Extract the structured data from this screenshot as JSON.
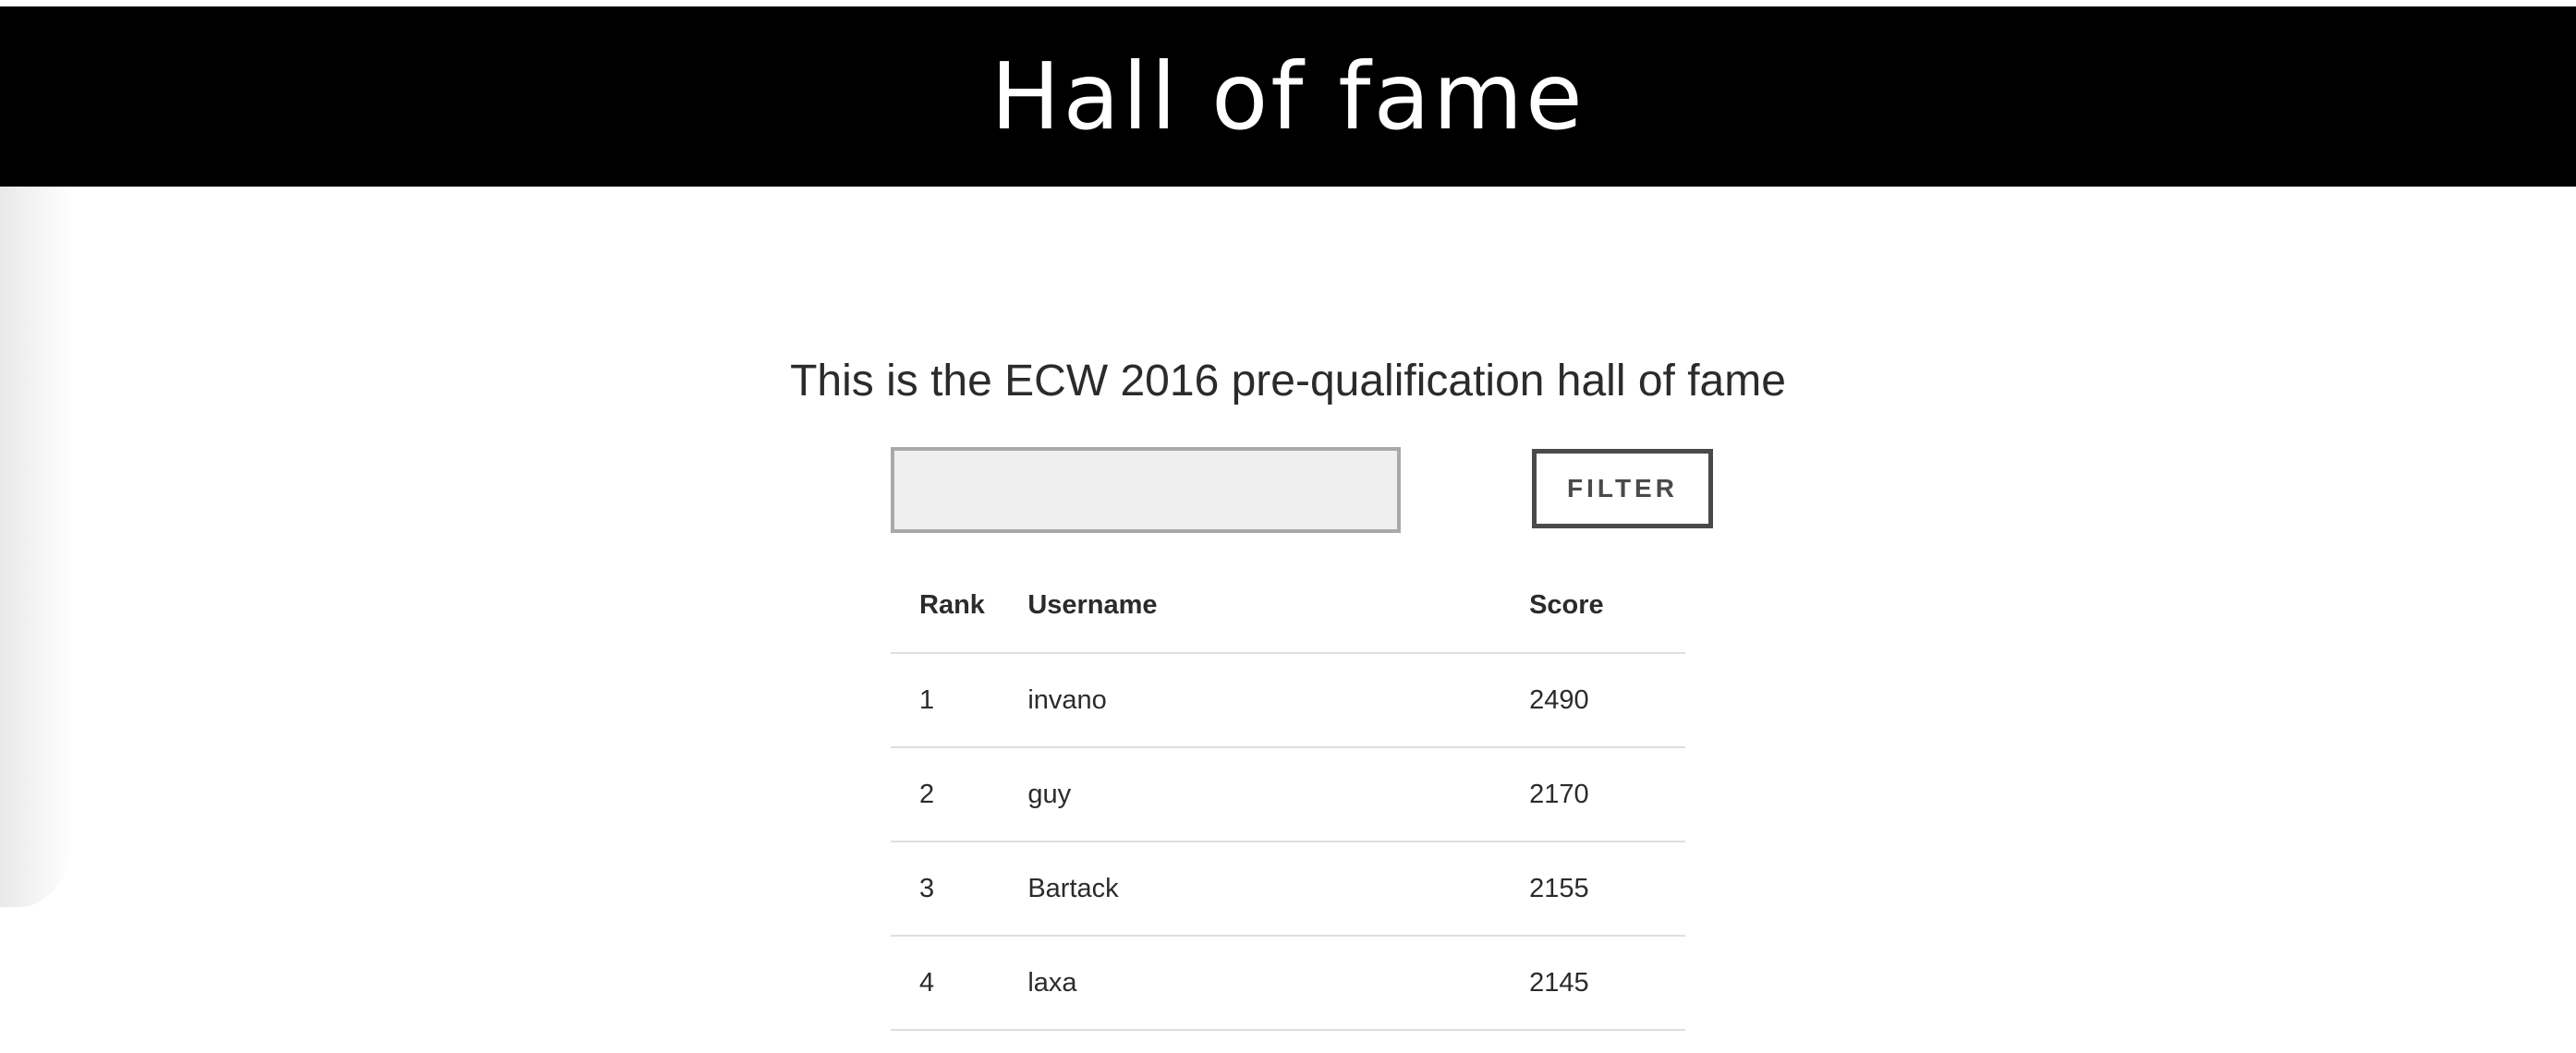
{
  "header": {
    "title": "Hall of fame"
  },
  "main": {
    "subtitle": "This is the ECW 2016 pre-qualification hall of fame",
    "filter": {
      "input_value": "",
      "button_label": "FILTER"
    },
    "table": {
      "columns": [
        "Rank",
        "Username",
        "Score"
      ],
      "rows": [
        {
          "rank": "1",
          "username": "invano",
          "score": "2490"
        },
        {
          "rank": "2",
          "username": "guy",
          "score": "2170"
        },
        {
          "rank": "3",
          "username": "Bartack",
          "score": "2155"
        },
        {
          "rank": "4",
          "username": "laxa",
          "score": "2145"
        }
      ]
    }
  },
  "colors": {
    "header_bg": "#000000",
    "header_text": "#ffffff",
    "input_bg": "#efefef",
    "button_border": "#4a4a4a"
  }
}
